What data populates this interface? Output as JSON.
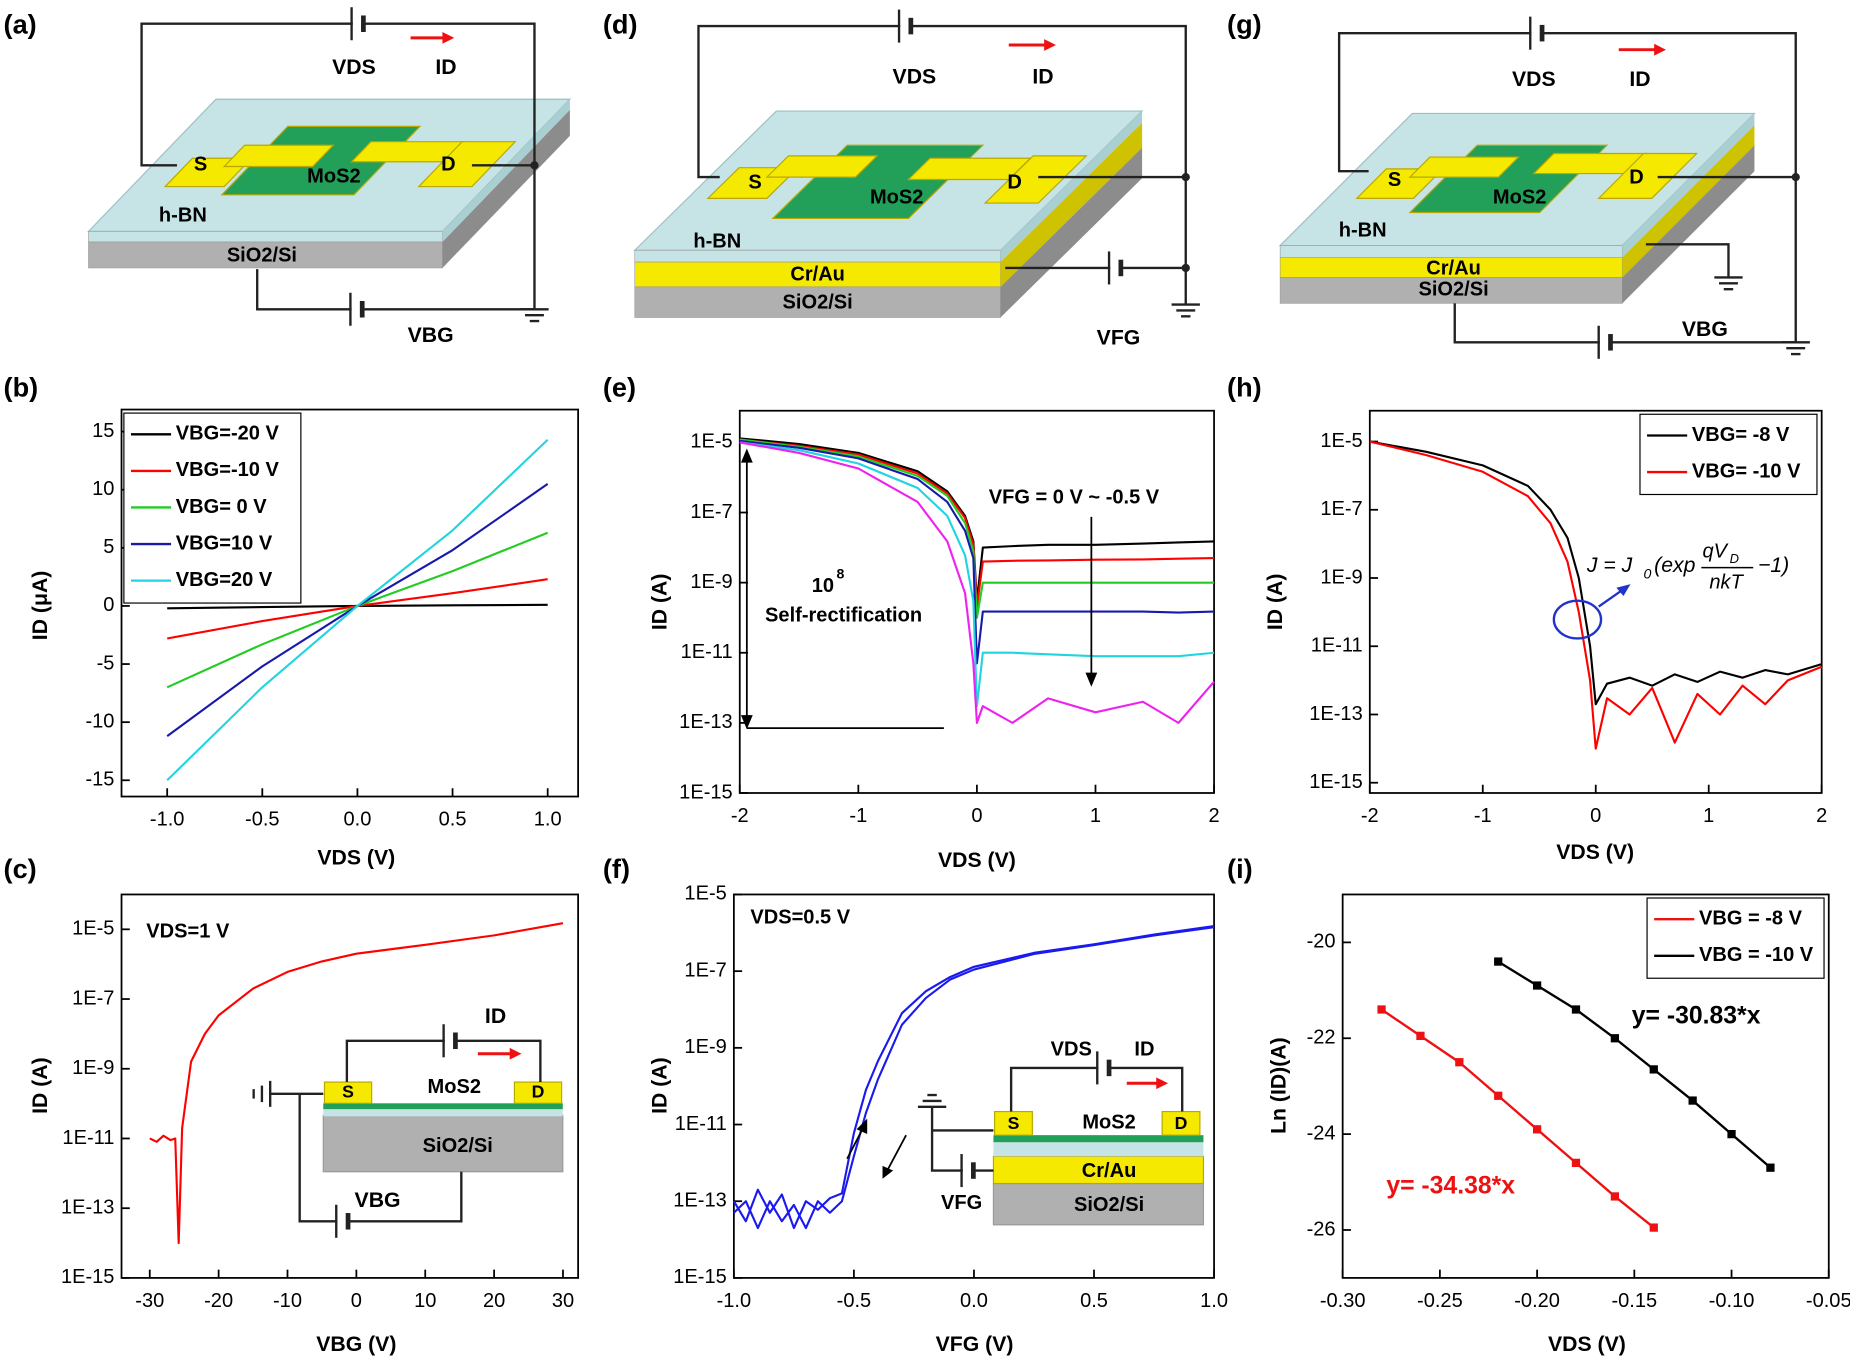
{
  "panels": [
    "(a)",
    "(b)",
    "(c)",
    "(d)",
    "(e)",
    "(f)",
    "(g)",
    "(h)",
    "(i)"
  ],
  "diagrams": {
    "a": {
      "vds": "VDS",
      "id": "ID",
      "source": "S",
      "drain": "D",
      "channel": "MoS2",
      "dielectric": "h-BN",
      "substrate": "SiO2/Si",
      "gate": "VBG"
    },
    "d": {
      "vds": "VDS",
      "id": "ID",
      "source": "S",
      "drain": "D",
      "channel": "MoS2",
      "dielectric": "h-BN",
      "electrode": "Cr/Au",
      "substrate": "SiO2/Si",
      "gate": "VFG"
    },
    "g": {
      "vds": "VDS",
      "id": "ID",
      "source": "S",
      "drain": "D",
      "channel": "MoS2",
      "dielectric": "h-BN",
      "electrode": "Cr/Au",
      "substrate": "SiO2/Si",
      "gate": "VBG"
    }
  },
  "chart_data": [
    {
      "type": "line",
      "xlabel": "VDS (V)",
      "ylabel": "ID (μA)",
      "yscale": "linear",
      "xlim": [
        -1.24,
        1.16
      ],
      "ylim": [
        -16.4,
        16.9
      ],
      "xticks": [
        {
          "value": -1,
          "label": "-1.0"
        },
        {
          "value": -0.5,
          "label": "-0.5"
        },
        {
          "value": 0,
          "label": "0.0"
        },
        {
          "value": 0.5,
          "label": "0.5"
        },
        {
          "value": 1,
          "label": "1.0"
        }
      ],
      "yticks": [
        -15,
        -10,
        -5,
        0,
        5,
        10,
        15
      ],
      "legend": "upper left",
      "x": [
        -1,
        -0.5,
        0,
        0.5,
        1
      ],
      "series": [
        {
          "name": "VBG=-20 V",
          "color": "#000000",
          "values": [
            -0.2,
            -0.1,
            0,
            0.05,
            0.1
          ]
        },
        {
          "name": "VBG=-10 V",
          "color": "#ff0000",
          "values": [
            -2.8,
            -1.3,
            0,
            1.1,
            2.3
          ]
        },
        {
          "name": "VBG= 0 V",
          "color": "#22cc22",
          "values": [
            -7,
            -3.3,
            0,
            3,
            6.3
          ]
        },
        {
          "name": "VBG=10 V",
          "color": "#1a1aaa",
          "values": [
            -11.2,
            -5.2,
            0,
            4.8,
            10.5
          ]
        },
        {
          "name": "VBG=20 V",
          "color": "#22d4e0",
          "values": [
            -15,
            -7,
            0,
            6.5,
            14.3
          ]
        }
      ]
    },
    {
      "type": "line",
      "xlabel": "VBG (V)",
      "ylabel": "ID (A)",
      "yscale": "log",
      "xlim": [
        -34.1,
        32.2
      ],
      "ylim": [
        1e-15,
        0.0001
      ],
      "xticks": [
        -30,
        -20,
        -10,
        0,
        10,
        20,
        30
      ],
      "yticks": [
        {
          "value": 1e-05,
          "label": "1E-5"
        },
        {
          "value": 1e-07,
          "label": "1E-7"
        },
        {
          "value": 1e-09,
          "label": "1E-9"
        },
        {
          "value": 1e-11,
          "label": "1E-11"
        },
        {
          "value": 1e-13,
          "label": "1E-13"
        },
        {
          "value": 1e-15,
          "label": "1E-15"
        }
      ],
      "x": [
        -30,
        -29,
        -28,
        -27,
        -26.3,
        -25.8,
        -25.3,
        -24,
        -22,
        -20,
        -15,
        -10,
        -5,
        0,
        10,
        20,
        30
      ],
      "series": [
        {
          "color": "#ff0000",
          "values": [
            1e-11,
            8e-12,
            1.2e-11,
            9e-12,
            1e-11,
            1e-14,
            2e-11,
            1.6e-09,
            1e-08,
            3.4e-08,
            2e-07,
            6e-07,
            1.2e-06,
            2e-06,
            3.6e-06,
            6.7e-06,
            1.5e-05
          ]
        }
      ],
      "annotations": [
        {
          "text": "VDS=1 V",
          "color": "#000000"
        }
      ],
      "inset": {
        "id": "ID",
        "source": "S",
        "channel": "MoS2",
        "drain": "D",
        "substrate": "SiO2/Si",
        "gate": "VBG"
      }
    },
    {
      "type": "line",
      "xlabel": "VDS (V)",
      "ylabel": "ID (A)",
      "yscale": "log",
      "xlim": [
        -2,
        2
      ],
      "ylim": [
        1e-15,
        8e-05
      ],
      "xticks": [
        -2,
        -1,
        0,
        1,
        2
      ],
      "yticks": [
        {
          "value": 1e-05,
          "label": "1E-5"
        },
        {
          "value": 1e-07,
          "label": "1E-7"
        },
        {
          "value": 1e-09,
          "label": "1E-9"
        },
        {
          "value": 1e-11,
          "label": "1E-11"
        },
        {
          "value": 1e-13,
          "label": "1E-13"
        },
        {
          "value": 1e-15,
          "label": "1E-15"
        }
      ],
      "x": [
        -2,
        -1.5,
        -1,
        -0.5,
        -0.25,
        -0.1,
        -0.03,
        0,
        0.05,
        0.3,
        0.6,
        1,
        1.4,
        1.7,
        2
      ],
      "series": [
        {
          "color": "#000000",
          "values": [
            1.3e-05,
            9e-06,
            5e-06,
            1.5e-06,
            4e-07,
            8e-08,
            1.5e-08,
            3e-10,
            1e-08,
            1.1e-08,
            1.2e-08,
            1.2e-08,
            1.3e-08,
            1.4e-08,
            1.5e-08
          ]
        },
        {
          "color": "#ff0000",
          "values": [
            1.2e-05,
            8e-06,
            4.5e-06,
            1.3e-06,
            3.5e-07,
            7e-08,
            1.2e-08,
            2e-10,
            4e-09,
            4.2e-09,
            4.3e-09,
            4.5e-09,
            4.6e-09,
            4.8e-09,
            5e-09
          ]
        },
        {
          "color": "#22cc22",
          "values": [
            1.2e-05,
            7.5e-06,
            4e-06,
            1.1e-06,
            3e-07,
            5e-08,
            8e-09,
            1e-10,
            1e-09,
            1e-09,
            1e-09,
            1e-09,
            1e-09,
            1e-09,
            1e-09
          ]
        },
        {
          "color": "#1a1aaa",
          "values": [
            1.1e-05,
            7e-06,
            3.5e-06,
            9e-07,
            2e-07,
            3e-08,
            5e-09,
            5e-12,
            1.5e-10,
            1.5e-10,
            1.5e-10,
            1.5e-10,
            1.5e-10,
            1.4e-10,
            1.5e-10
          ]
        },
        {
          "color": "#22d4e0",
          "values": [
            1e-05,
            6e-06,
            2.5e-06,
            5e-07,
            8e-08,
            6e-09,
            3e-10,
            3e-13,
            1e-11,
            1e-11,
            9e-12,
            8e-12,
            8e-12,
            8e-12,
            1e-11
          ]
        },
        {
          "color": "#ee22ee",
          "values": [
            1e-05,
            5e-06,
            1.8e-06,
            2e-07,
            1.5e-08,
            5e-10,
            5e-12,
            1e-13,
            3e-13,
            1e-13,
            5e-13,
            2e-13,
            4e-13,
            1e-13,
            1.5e-12
          ]
        }
      ],
      "annotations": [
        {
          "text": "VFG = 0 V ~ -0.5 V",
          "color": "#000000"
        },
        {
          "text": "10",
          "color": "#000000"
        },
        {
          "text": "8",
          "color": "#000000"
        },
        {
          "text": "Self-rectification",
          "color": "#000000"
        }
      ]
    },
    {
      "type": "line",
      "xlabel": "VFG (V)",
      "ylabel": "ID (A)",
      "yscale": "log",
      "xlim": [
        -1,
        1
      ],
      "ylim": [
        1e-15,
        1e-05
      ],
      "xticks": [
        {
          "value": -1,
          "label": "-1.0"
        },
        {
          "value": -0.5,
          "label": "-0.5"
        },
        {
          "value": 0,
          "label": "0.0"
        },
        {
          "value": 0.5,
          "label": "0.5"
        },
        {
          "value": 1,
          "label": "1.0"
        }
      ],
      "yticks": [
        {
          "value": 1e-05,
          "label": "1E-5"
        },
        {
          "value": 1e-07,
          "label": "1E-7"
        },
        {
          "value": 1e-09,
          "label": "1E-9"
        },
        {
          "value": 1e-11,
          "label": "1E-11"
        },
        {
          "value": 1e-13,
          "label": "1E-13"
        },
        {
          "value": 1e-15,
          "label": "1E-15"
        }
      ],
      "x": [
        -1,
        -0.95,
        -0.9,
        -0.85,
        -0.8,
        -0.75,
        -0.7,
        -0.65,
        -0.6,
        -0.55,
        -0.5,
        -0.45,
        -0.4,
        -0.3,
        -0.2,
        -0.1,
        0,
        0.25,
        0.5,
        0.75,
        1
      ],
      "series": [
        {
          "color": "#1a1aee",
          "values": [
            1e-13,
            3e-14,
            2e-13,
            5e-14,
            1.5e-13,
            2e-14,
            1e-13,
            6e-14,
            1.2e-13,
            1.6e-13,
            6e-12,
            8e-11,
            4.5e-10,
            8e-09,
            3e-08,
            7e-08,
            1.3e-07,
            3e-07,
            5e-07,
            9e-07,
            1.5e-06
          ]
        },
        {
          "color": "#1a1aee",
          "values": [
            5e-14,
            1e-13,
            2e-14,
            1e-13,
            3e-14,
            8e-14,
            2e-14,
            1e-13,
            5e-14,
            1e-13,
            1.5e-12,
            2e-11,
            1.5e-10,
            4e-09,
            2e-08,
            6e-08,
            1.1e-07,
            2.8e-07,
            4.8e-07,
            8.5e-07,
            1.4e-06
          ]
        }
      ],
      "annotations": [
        {
          "text": "VDS=0.5 V",
          "color": "#000000"
        }
      ],
      "inset": {
        "vds": "VDS",
        "id": "ID",
        "source": "S",
        "channel": "MoS2",
        "drain": "D",
        "electrode": "Cr/Au",
        "substrate": "SiO2/Si",
        "gate": "VFG"
      }
    },
    {
      "type": "line",
      "xlabel": "VDS (V)",
      "ylabel": "ID (A)",
      "yscale": "log",
      "xlim": [
        -2,
        2
      ],
      "ylim": [
        5e-16,
        8e-05
      ],
      "xticks": [
        -2,
        -1,
        0,
        1,
        2
      ],
      "yticks": [
        {
          "value": 1e-05,
          "label": "1E-5"
        },
        {
          "value": 1e-07,
          "label": "1E-7"
        },
        {
          "value": 1e-09,
          "label": "1E-9"
        },
        {
          "value": 1e-11,
          "label": "1E-11"
        },
        {
          "value": 1e-13,
          "label": "1E-13"
        },
        {
          "value": 1e-15,
          "label": "1E-15"
        }
      ],
      "legend": "upper right",
      "x": [
        -2,
        -1.5,
        -1,
        -0.6,
        -0.4,
        -0.25,
        -0.15,
        -0.05,
        0,
        0.1,
        0.3,
        0.5,
        0.7,
        0.9,
        1.1,
        1.3,
        1.5,
        1.7,
        2
      ],
      "series": [
        {
          "name": "VBG= -8 V",
          "color": "#000000",
          "values": [
            1e-05,
            5e-06,
            2e-06,
            5e-07,
            1e-07,
            1.5e-08,
            1e-09,
            1e-11,
            2e-13,
            8e-13,
            1.2e-12,
            7e-13,
            1.5e-12,
            9e-13,
            1.8e-12,
            1.2e-12,
            2e-12,
            1.5e-12,
            3e-12
          ]
        },
        {
          "name": "VBG= -10 V",
          "color": "#ff0000",
          "values": [
            1e-05,
            4e-06,
            1.3e-06,
            2.5e-07,
            4e-08,
            3e-09,
            1e-10,
            1e-12,
            1e-14,
            3e-13,
            1e-13,
            6e-13,
            1.5e-14,
            4e-13,
            1e-13,
            7e-13,
            2e-13,
            1e-12,
            2.5e-12
          ]
        }
      ],
      "annotations": [
        {
          "text": "J = J",
          "color": "#000000"
        },
        {
          "text": "0",
          "color": "#000000"
        },
        {
          "text": "(exp",
          "color": "#000000"
        },
        {
          "text": "qV",
          "color": "#000000"
        },
        {
          "text": "D",
          "color": "#000000"
        },
        {
          "text": "nkT",
          "color": "#000000"
        },
        {
          "text": "−1)",
          "color": "#000000"
        }
      ]
    },
    {
      "type": "scatter",
      "xlabel": "VDS (V)",
      "ylabel": "Ln (ID)(A)",
      "yscale": "linear",
      "markers": "square",
      "xlim": [
        -0.3,
        -0.05
      ],
      "ylim": [
        -27,
        -19
      ],
      "xticks": [
        {
          "value": -0.3,
          "label": "-0.30"
        },
        {
          "value": -0.25,
          "label": "-0.25"
        },
        {
          "value": -0.2,
          "label": "-0.20"
        },
        {
          "value": -0.15,
          "label": "-0.15"
        },
        {
          "value": -0.1,
          "label": "-0.10"
        },
        {
          "value": -0.05,
          "label": "-0.05"
        }
      ],
      "yticks": [
        -20,
        -22,
        -24,
        -26
      ],
      "legend": "upper right",
      "series": [
        {
          "name": "VBG = -8 V",
          "color": "#ee1111",
          "x": [
            -0.28,
            -0.26,
            -0.24,
            -0.22,
            -0.2,
            -0.18,
            -0.16,
            -0.14
          ],
          "values": [
            -21.4,
            -21.95,
            -22.5,
            -23.2,
            -23.9,
            -24.6,
            -25.3,
            -25.95
          ]
        },
        {
          "name": "VBG = -10 V",
          "color": "#000000",
          "x": [
            -0.22,
            -0.2,
            -0.18,
            -0.16,
            -0.14,
            -0.12,
            -0.1,
            -0.08
          ],
          "values": [
            -20.4,
            -20.9,
            -21.4,
            -22.0,
            -22.65,
            -23.3,
            -24.0,
            -24.7
          ]
        }
      ],
      "annotations": [
        {
          "text": "y= -30.83*x",
          "color": "#000000"
        },
        {
          "text": "y= -34.38*x",
          "color": "#ee1111"
        }
      ]
    }
  ]
}
